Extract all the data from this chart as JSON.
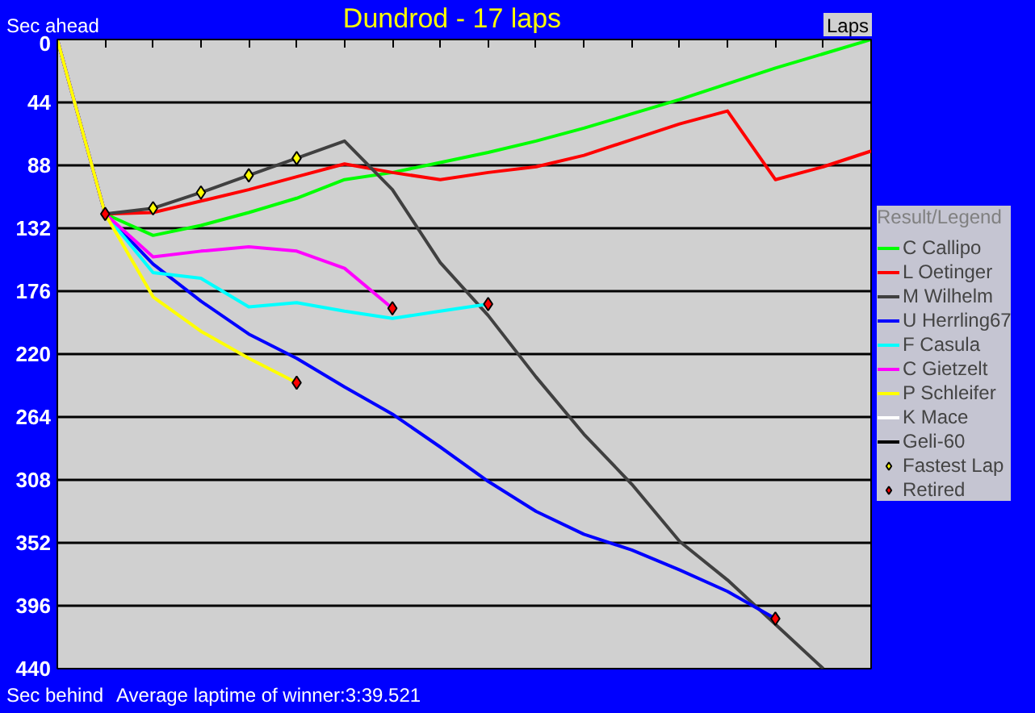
{
  "chart_data": {
    "type": "line",
    "title": "Dundrod - 17 laps",
    "xlabel": "Laps",
    "legend_title": "Result/Legend",
    "annotations": [
      "Sec ahead",
      "Sec behind",
      "Average laptime of winner:3:39.521"
    ],
    "categories": [
      null,
      null,
      null,
      null,
      null,
      null,
      null,
      null,
      null,
      null,
      null,
      null,
      null,
      null,
      null,
      null,
      null,
      null
    ],
    "ylim": [
      440,
      0
    ],
    "yticks": [
      0,
      44,
      88,
      132,
      176,
      220,
      264,
      308,
      352,
      396,
      440
    ],
    "tick_labels": "y",
    "grid": "y",
    "legend": "right",
    "line_style": "solid",
    "series": [
      {
        "name": "C Callipo",
        "color": "#00ff00",
        "values": [
          0,
          122,
          137,
          130,
          121,
          111,
          98,
          93,
          86,
          79,
          71,
          62,
          52,
          42,
          31,
          20,
          10,
          0
        ]
      },
      {
        "name": "L Oetinger",
        "color": "#ff0000",
        "values": [
          0,
          122,
          121,
          113,
          105,
          96,
          87,
          93,
          98,
          93,
          89,
          81,
          70,
          59,
          50,
          98,
          89,
          78
        ]
      },
      {
        "name": "M Wilhelm",
        "color": "#404040",
        "values": [
          0,
          122,
          118,
          107,
          95,
          83,
          71,
          105,
          156,
          193,
          236,
          276,
          311,
          351,
          378,
          409,
          440,
          null
        ]
      },
      {
        "name": "U Herrling67",
        "color": "#0000ff",
        "values": [
          0,
          122,
          157,
          183,
          206,
          223,
          243,
          262,
          285,
          309,
          330,
          346,
          357,
          371,
          386,
          405,
          null,
          null
        ]
      },
      {
        "name": "F Casula",
        "color": "#00ffff",
        "values": [
          0,
          122,
          163,
          167,
          187,
          184,
          190,
          195,
          190,
          185,
          null,
          null,
          null,
          null,
          null,
          null,
          null,
          null
        ]
      },
      {
        "name": "C Gietzelt",
        "color": "#ff00ff",
        "values": [
          0,
          122,
          152,
          148,
          145,
          148,
          160,
          188,
          null,
          null,
          null,
          null,
          null,
          null,
          null,
          null,
          null,
          null
        ]
      },
      {
        "name": "P Schleifer",
        "color": "#ffff00",
        "values": [
          0,
          122,
          180,
          204,
          223,
          240,
          null,
          null,
          null,
          null,
          null,
          null,
          null,
          null,
          null,
          null,
          null,
          null
        ]
      },
      {
        "name": "K Mace",
        "color": "#ffffff",
        "values": [
          null,
          null,
          null,
          null,
          null,
          null,
          null,
          null,
          null,
          null,
          null,
          null,
          null,
          null,
          null,
          null,
          null,
          null
        ]
      },
      {
        "name": "Geli-60",
        "color": "#000000",
        "values": [
          null,
          null,
          null,
          null,
          null,
          null,
          null,
          null,
          null,
          null,
          null,
          null,
          null,
          null,
          null,
          null,
          null,
          null
        ]
      },
      {
        "name": "Fastest Lap",
        "type": "scatter",
        "marker": "diamond",
        "color": "#ffff00",
        "values": [
          null,
          null,
          118,
          107,
          95,
          83,
          null,
          null,
          null,
          null,
          null,
          null,
          null,
          null,
          null,
          null,
          null,
          null
        ]
      },
      {
        "name": "Retired",
        "type": "scatter",
        "marker": "diamond",
        "color": "#ff0000",
        "values": [
          null,
          122,
          null,
          null,
          null,
          240,
          null,
          188,
          null,
          185,
          null,
          null,
          null,
          null,
          null,
          405,
          null,
          null
        ]
      }
    ]
  }
}
